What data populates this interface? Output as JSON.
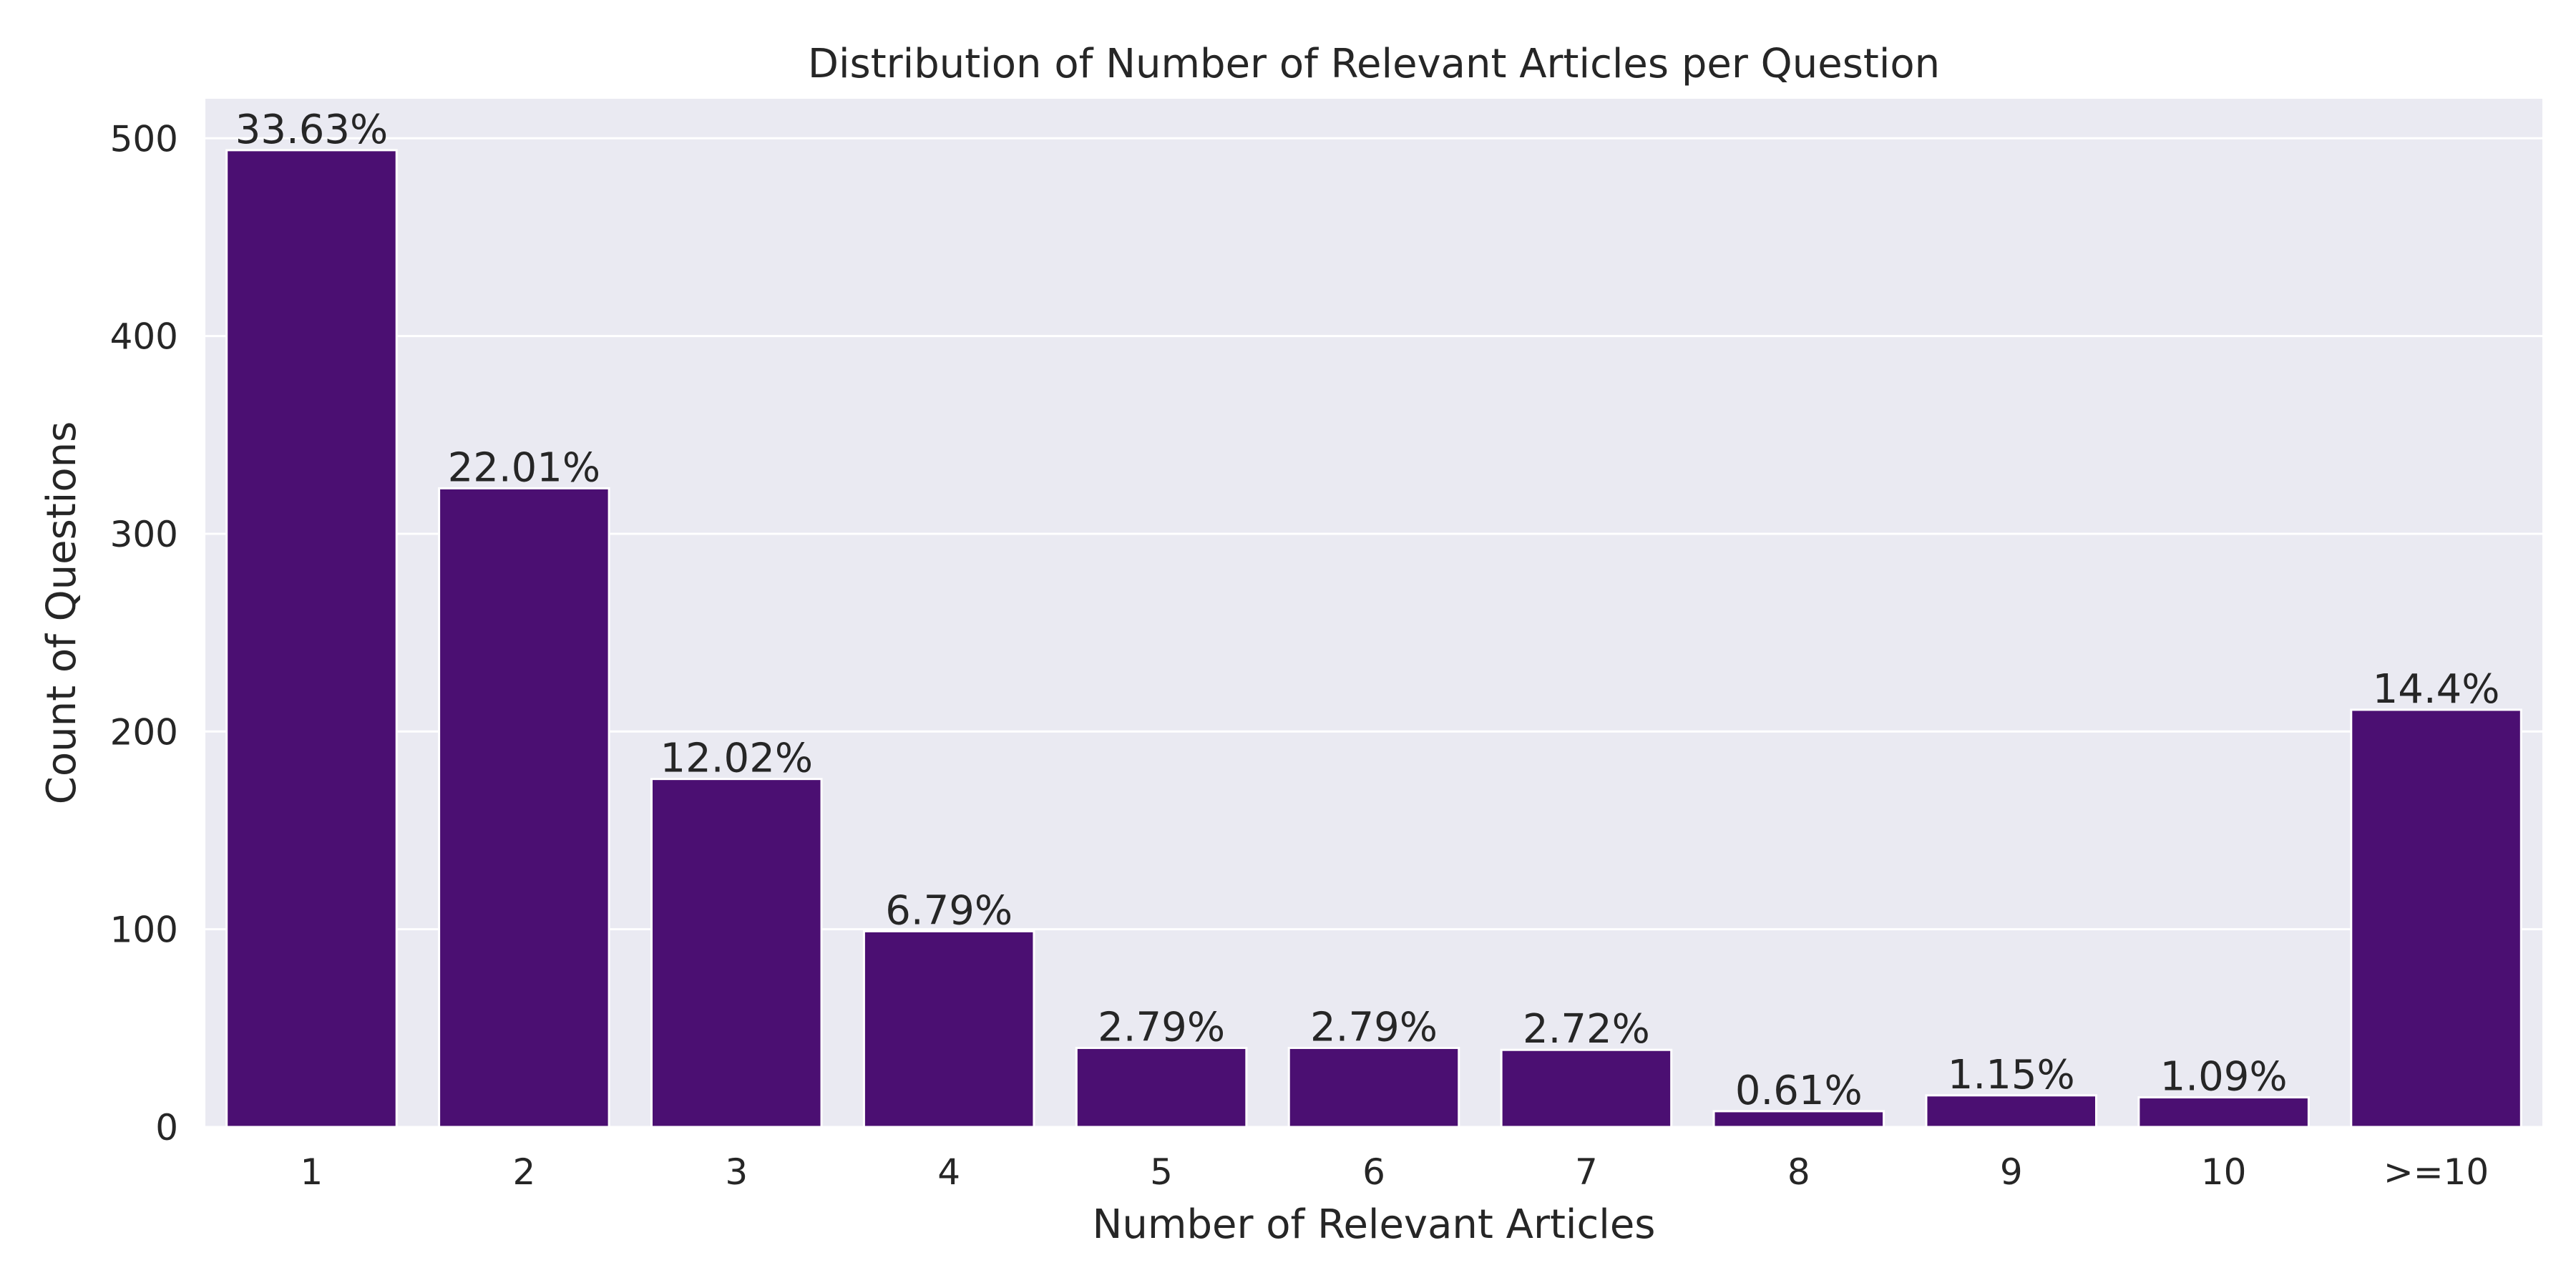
{
  "chart_data": {
    "type": "bar",
    "title": "Distribution of Number of Relevant Articles per Question",
    "xlabel": "Number of Relevant Articles",
    "ylabel": "Count of Questions",
    "categories": [
      "1",
      "2",
      "3",
      "4",
      "5",
      "6",
      "7",
      "8",
      "9",
      "10",
      ">=10"
    ],
    "values": [
      494,
      323,
      176,
      99,
      40,
      40,
      39,
      8,
      16,
      15,
      211
    ],
    "data_labels": [
      "33.63%",
      "22.01%",
      "12.02%",
      "6.79%",
      "2.79%",
      "2.79%",
      "2.72%",
      "0.61%",
      "1.15%",
      "1.09%",
      "14.4%"
    ],
    "yticks": [
      "0",
      "100",
      "200",
      "300",
      "400",
      "500"
    ],
    "ylim": [
      0,
      520
    ],
    "grid": true,
    "bar_color": "#4b0f72",
    "background_color": "#eaeaf2"
  }
}
